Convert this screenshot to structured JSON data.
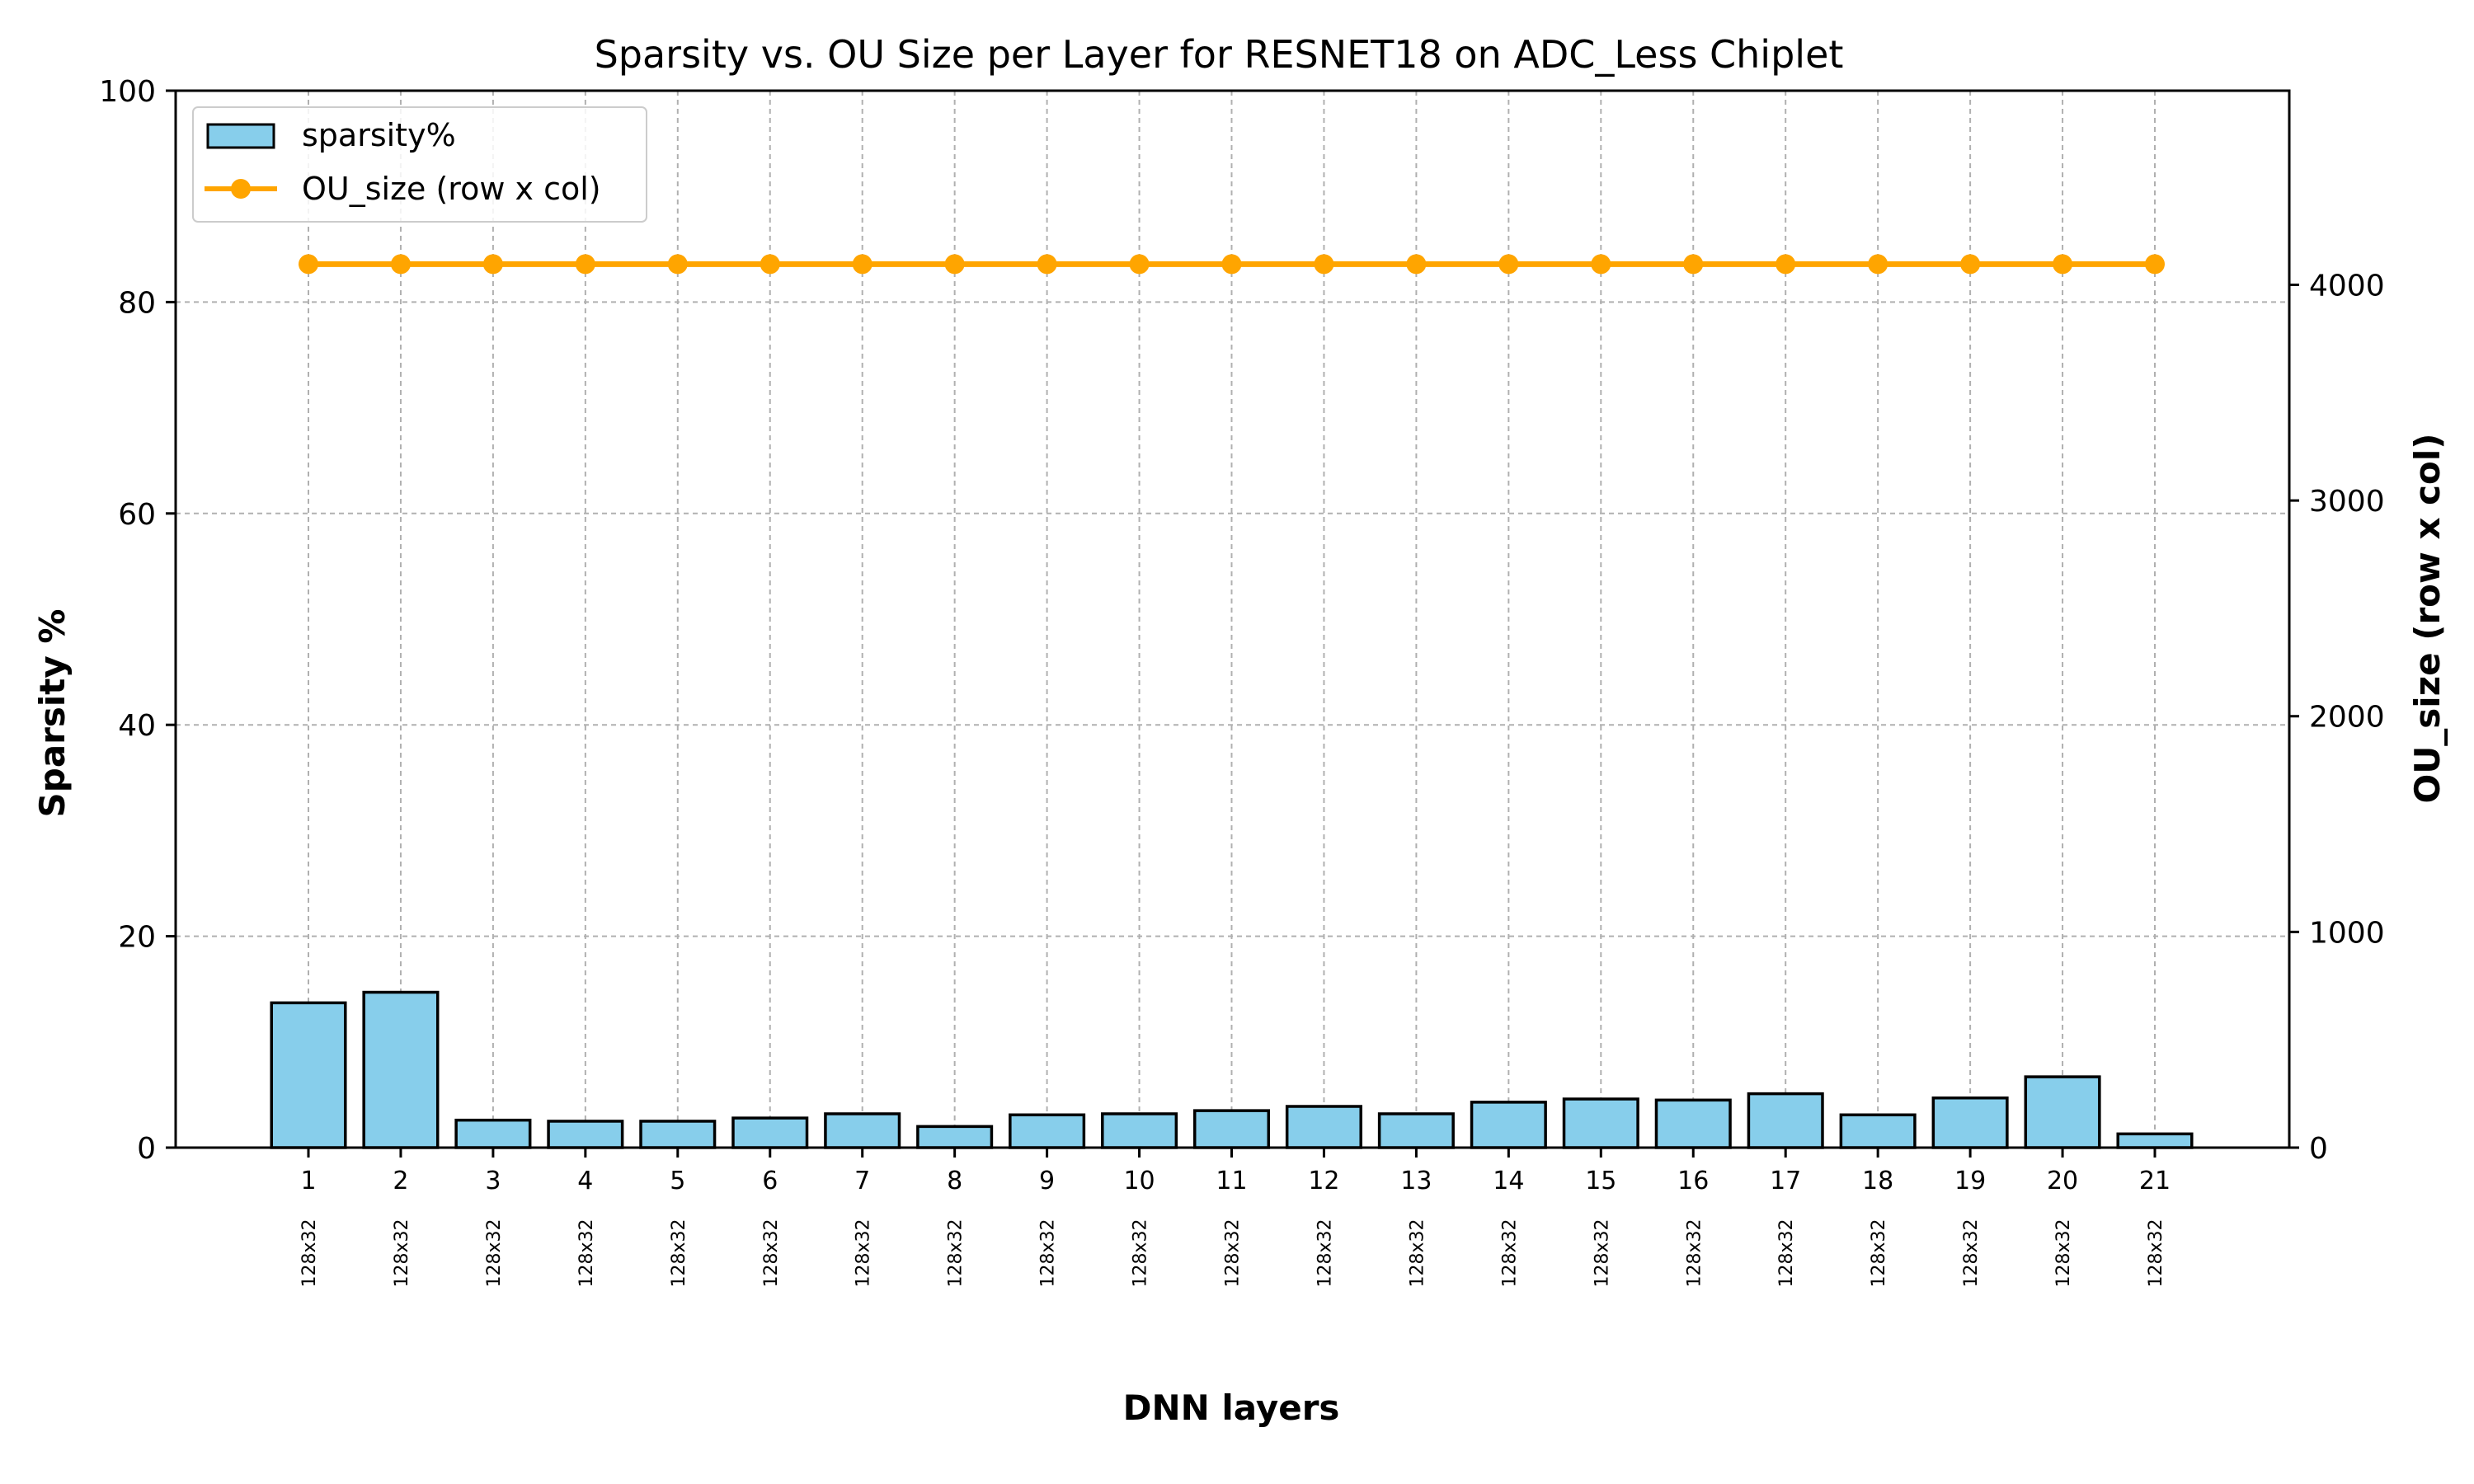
{
  "chart_data": {
    "type": "bar",
    "title": "Sparsity vs. OU Size per Layer for RESNET18 on ADC_Less Chiplet",
    "xlabel": "DNN layers",
    "ylabel": "Sparsity %",
    "y2label": "OU_size (row x col)",
    "ylim": [
      0,
      100
    ],
    "y2lim": [
      0,
      4900
    ],
    "yticks": [
      0,
      20,
      40,
      60,
      80,
      100
    ],
    "y2ticks": [
      0,
      1000,
      2000,
      3000,
      4000
    ],
    "grid": true,
    "legend_position": "top-left",
    "categories": [
      "1",
      "2",
      "3",
      "4",
      "5",
      "6",
      "7",
      "8",
      "9",
      "10",
      "11",
      "12",
      "13",
      "14",
      "15",
      "16",
      "17",
      "18",
      "19",
      "20",
      "21"
    ],
    "ou_labels": [
      "128x32",
      "128x32",
      "128x32",
      "128x32",
      "128x32",
      "128x32",
      "128x32",
      "128x32",
      "128x32",
      "128x32",
      "128x32",
      "128x32",
      "128x32",
      "128x32",
      "128x32",
      "128x32",
      "128x32",
      "128x32",
      "128x32",
      "128x32",
      "128x32"
    ],
    "series": [
      {
        "name": "sparsity%",
        "type": "bar",
        "axis": "left",
        "color": "#87CEEB",
        "edge_color": "#000000",
        "values": [
          13.7,
          14.7,
          2.6,
          2.5,
          2.5,
          2.8,
          3.2,
          2.0,
          3.1,
          3.2,
          3.5,
          3.9,
          3.2,
          4.3,
          4.6,
          4.5,
          5.1,
          3.1,
          4.7,
          6.7,
          1.3
        ]
      },
      {
        "name": "OU_size (row x col)",
        "type": "line",
        "axis": "right",
        "color": "#FFA500",
        "marker": "circle",
        "values": [
          4096,
          4096,
          4096,
          4096,
          4096,
          4096,
          4096,
          4096,
          4096,
          4096,
          4096,
          4096,
          4096,
          4096,
          4096,
          4096,
          4096,
          4096,
          4096,
          4096,
          4096
        ]
      }
    ]
  }
}
